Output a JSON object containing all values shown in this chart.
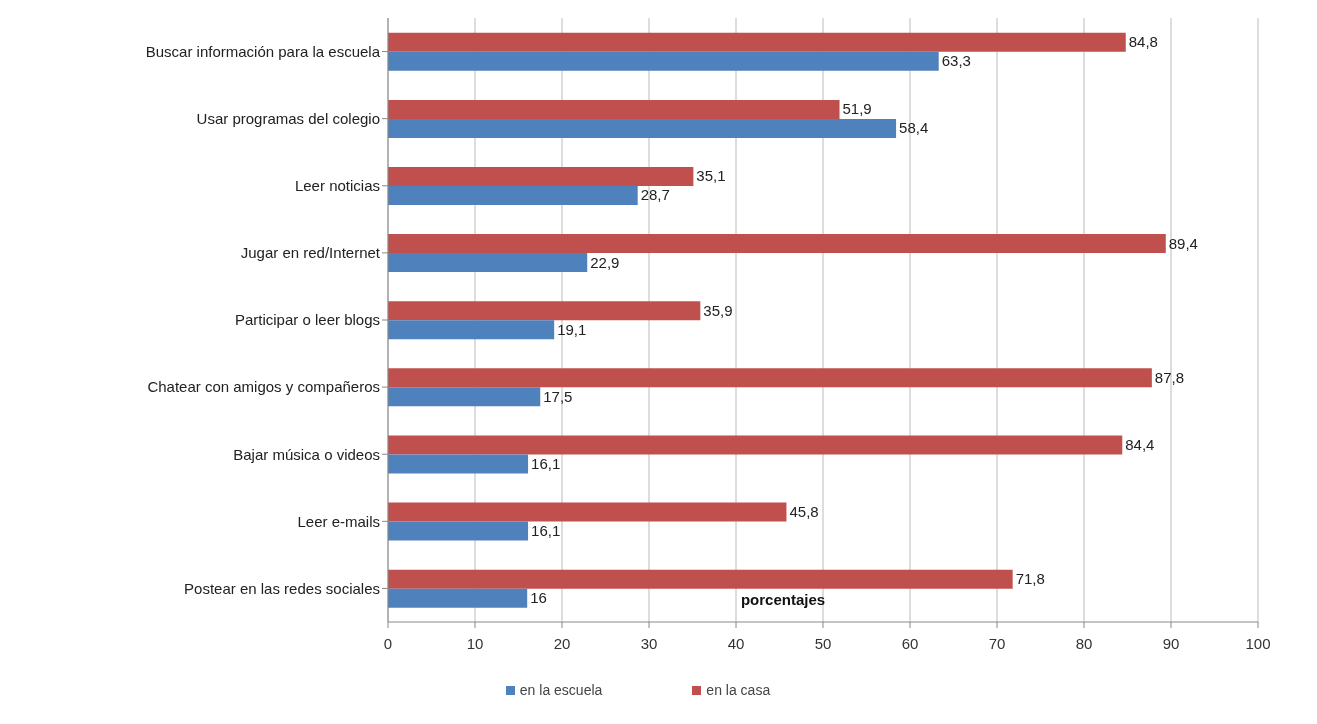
{
  "chart_data": {
    "type": "bar",
    "orientation": "horizontal",
    "xlabel": "porcentajes",
    "categories": [
      "Buscar información para la escuela",
      "Usar programas del colegio",
      "Leer noticias",
      "Jugar en red/Internet",
      "Participar o leer blogs",
      "Chatear con amigos y compañeros",
      "Bajar música o videos",
      "Leer e-mails",
      "Postear en las redes sociales"
    ],
    "series": [
      {
        "name": "en la escuela",
        "color": "#4f81bd",
        "values": [
          63.3,
          58.4,
          28.7,
          22.9,
          19.1,
          17.5,
          16.1,
          16.1,
          16
        ],
        "value_labels": [
          "63,3",
          "58,4",
          "28,7",
          "22,9",
          "19,1",
          "17,5",
          "16,1",
          "16,1",
          "16"
        ]
      },
      {
        "name": "en la casa",
        "color": "#c0504d",
        "values": [
          84.8,
          51.9,
          35.1,
          89.4,
          35.9,
          87.8,
          84.4,
          45.8,
          71.8
        ],
        "value_labels": [
          "84,8",
          "51,9",
          "35,1",
          "89,4",
          "35,9",
          "87,8",
          "84,4",
          "45,8",
          "71,8"
        ]
      }
    ],
    "xlim": [
      0,
      100
    ],
    "xticks": [
      0,
      10,
      20,
      30,
      40,
      50,
      60,
      70,
      80,
      90,
      100
    ],
    "grid": "x",
    "legend": "bottom"
  }
}
